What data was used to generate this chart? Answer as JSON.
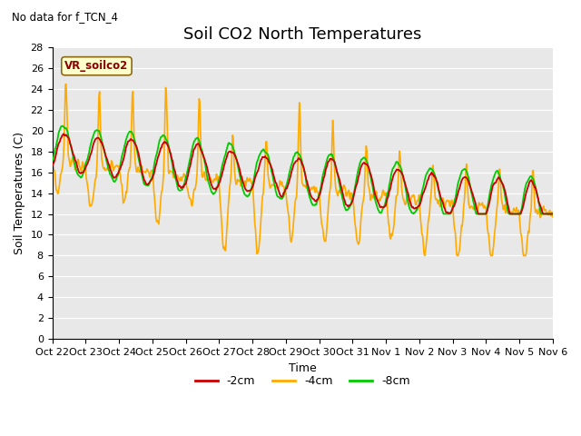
{
  "title": "Soil CO2 North Temperatures",
  "subtitle": "No data for f_TCN_4",
  "ylabel": "Soil Temperatures (C)",
  "xlabel": "Time",
  "legend_label": "VR_soilco2",
  "ylim": [
    0,
    28
  ],
  "yticks": [
    0,
    2,
    4,
    6,
    8,
    10,
    12,
    14,
    16,
    18,
    20,
    22,
    24,
    26,
    28
  ],
  "xtick_labels": [
    "Oct 22",
    "Oct 23",
    "Oct 24",
    "Oct 25",
    "Oct 26",
    "Oct 27",
    "Oct 28",
    "Oct 29",
    "Oct 30",
    "Oct 31",
    "Nov 1",
    "Nov 2",
    "Nov 3",
    "Nov 4",
    "Nov 5",
    "Nov 6"
  ],
  "line_colors": {
    "2cm": "#cc0000",
    "4cm": "#ffaa00",
    "8cm": "#00cc00"
  },
  "legend_entries": [
    "-2cm",
    "-4cm",
    "-8cm"
  ],
  "legend_colors": [
    "#cc0000",
    "#ffaa00",
    "#00cc00"
  ],
  "bg_color": "#e8e8e8",
  "title_fontsize": 13,
  "label_fontsize": 9,
  "tick_fontsize": 8
}
